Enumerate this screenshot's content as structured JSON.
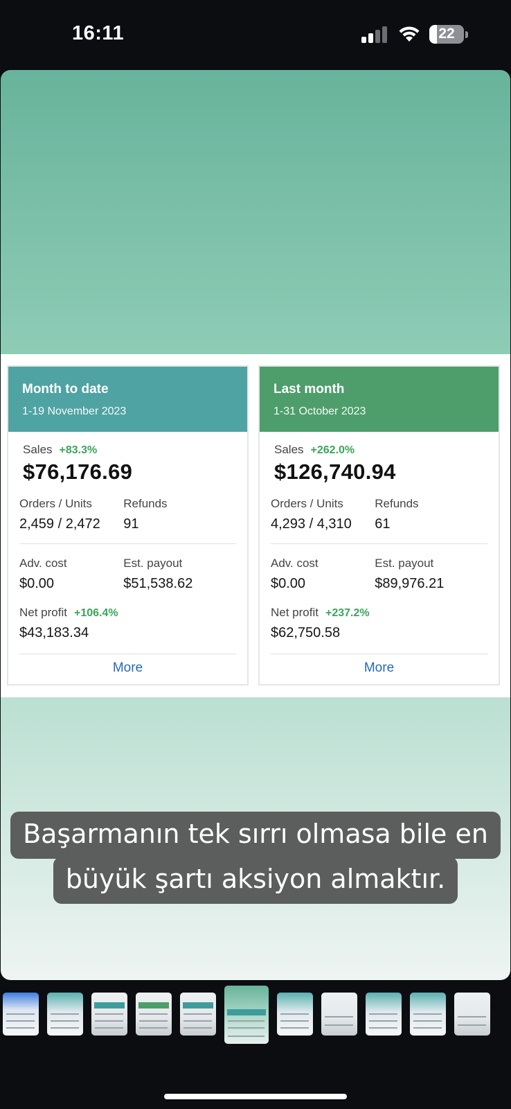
{
  "status_bar": {
    "time": "16:11",
    "battery": "22",
    "icons": [
      "cellular-signal-icon",
      "wifi-icon",
      "battery-icon"
    ]
  },
  "story": {
    "colors": {
      "gradient_top": "#68b39b",
      "month_to_date_header": "#4fa3a3",
      "last_month_header": "#4d9e6b",
      "positive": "#3aa55a",
      "link": "#2769b8"
    },
    "panels": [
      {
        "title": "Month to date",
        "range": "1-19 November 2023",
        "sales_label": "Sales",
        "sales_change": "+83.3%",
        "sales_value": "$76,176.69",
        "orders_label": "Orders / Units",
        "orders_value": "2,459 / 2,472",
        "refunds_label": "Refunds",
        "refunds_value": "91",
        "adv_label": "Adv. cost",
        "adv_value": "$0.00",
        "payout_label": "Est. payout",
        "payout_value": "$51,538.62",
        "net_label": "Net profit",
        "net_change": "+106.4%",
        "net_value": "$43,183.34",
        "more": "More"
      },
      {
        "title": "Last month",
        "range": "1-31 October 2023",
        "sales_label": "Sales",
        "sales_change": "+262.0%",
        "sales_value": "$126,740.94",
        "orders_label": "Orders / Units",
        "orders_value": "4,293 / 4,310",
        "refunds_label": "Refunds",
        "refunds_value": "61",
        "adv_label": "Adv. cost",
        "adv_value": "$0.00",
        "payout_label": "Est. payout",
        "payout_value": "$89,976.21",
        "net_label": "Net profit",
        "net_change": "+237.2%",
        "net_value": "$62,750.58",
        "more": "More"
      }
    ],
    "caption_line1": "Başarmanın tek sırrı olmasa bile en",
    "caption_line2": "büyük şartı aksiyon almaktır."
  },
  "thumbnails": {
    "count": 11,
    "selected_index": 5
  }
}
